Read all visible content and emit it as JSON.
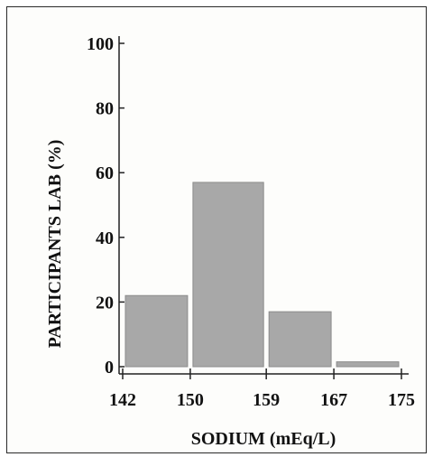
{
  "chart_data": {
    "type": "bar",
    "title": "",
    "xlabel": "SODIUM (mEq/L)",
    "ylabel": "PARTICIPANTS LAB (%)",
    "bin_edges": [
      142,
      150,
      159,
      167,
      175
    ],
    "values": [
      22,
      57,
      17,
      1.5
    ],
    "ylim": [
      0,
      100
    ],
    "yticks": [
      0,
      20,
      40,
      60,
      80,
      100
    ],
    "xtick_labels": [
      "142",
      "150",
      "159",
      "167",
      "175"
    ],
    "bar_color": "#a8a8a8",
    "grid": false,
    "legend": "none"
  }
}
